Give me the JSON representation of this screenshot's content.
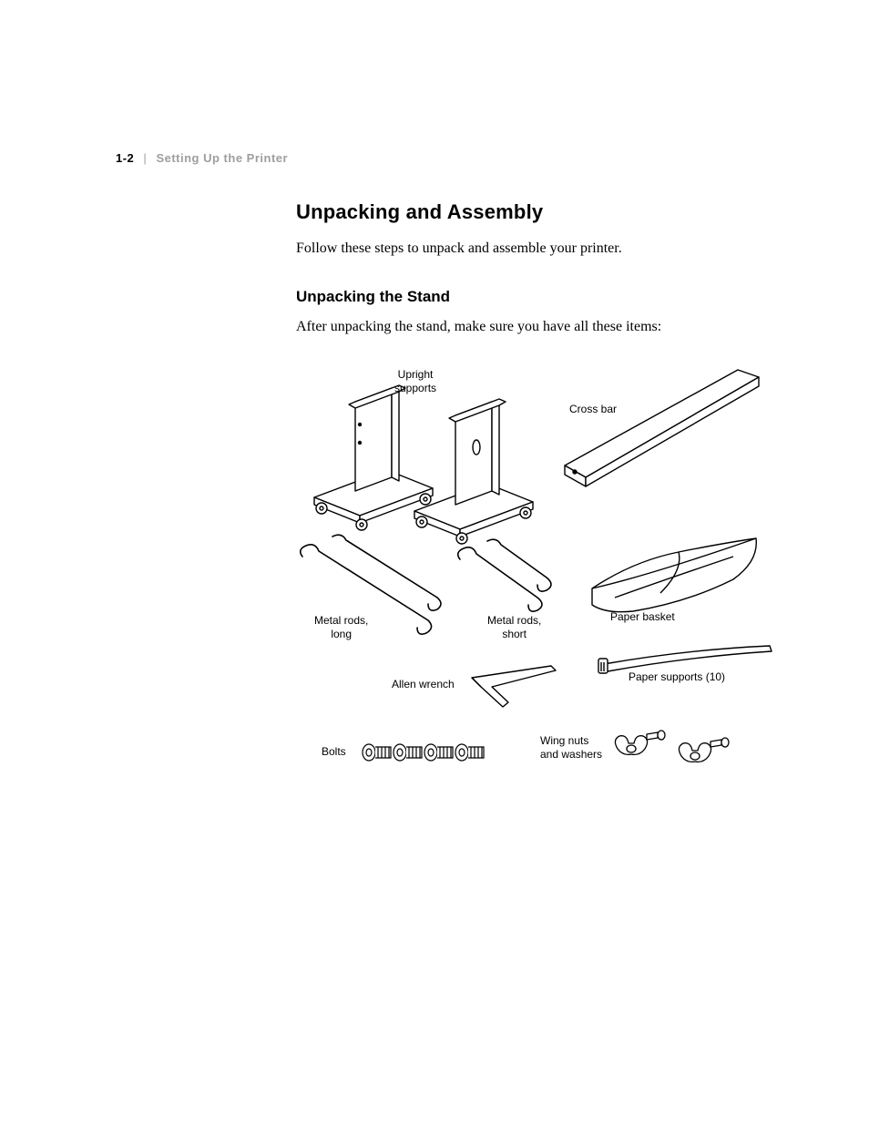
{
  "header": {
    "page_number": "1-2",
    "separator": "|",
    "section_title": "Setting Up the Printer"
  },
  "title": "Unpacking and Assembly",
  "intro_text": "Follow these steps to unpack and assemble your printer.",
  "subtitle": "Unpacking the Stand",
  "sub_text": "After unpacking the stand, make sure you have all these items:",
  "labels": {
    "upright_supports": "Upright\nsupports",
    "cross_bar": "Cross bar",
    "metal_rods_long": "Metal rods,\nlong",
    "metal_rods_short": "Metal rods,\nshort",
    "paper_basket": "Paper basket",
    "allen_wrench": "Allen wrench",
    "paper_supports": "Paper supports (10)",
    "bolts": "Bolts",
    "wing_nuts": "Wing nuts\nand washers"
  },
  "style": {
    "background_color": "#ffffff",
    "text_color": "#000000",
    "header_muted_color": "#9e9e9e",
    "body_font": "Georgia, 'Times New Roman', serif",
    "heading_font": "'Helvetica Neue', Helvetica, Arial, sans-serif",
    "label_fontsize": 12,
    "h1_fontsize": 22,
    "h2_fontsize": 17,
    "body_fontsize": 16,
    "diagram_stroke": "#000000",
    "diagram_fill": "#ffffff",
    "diagram_stroke_width": 1.4
  }
}
